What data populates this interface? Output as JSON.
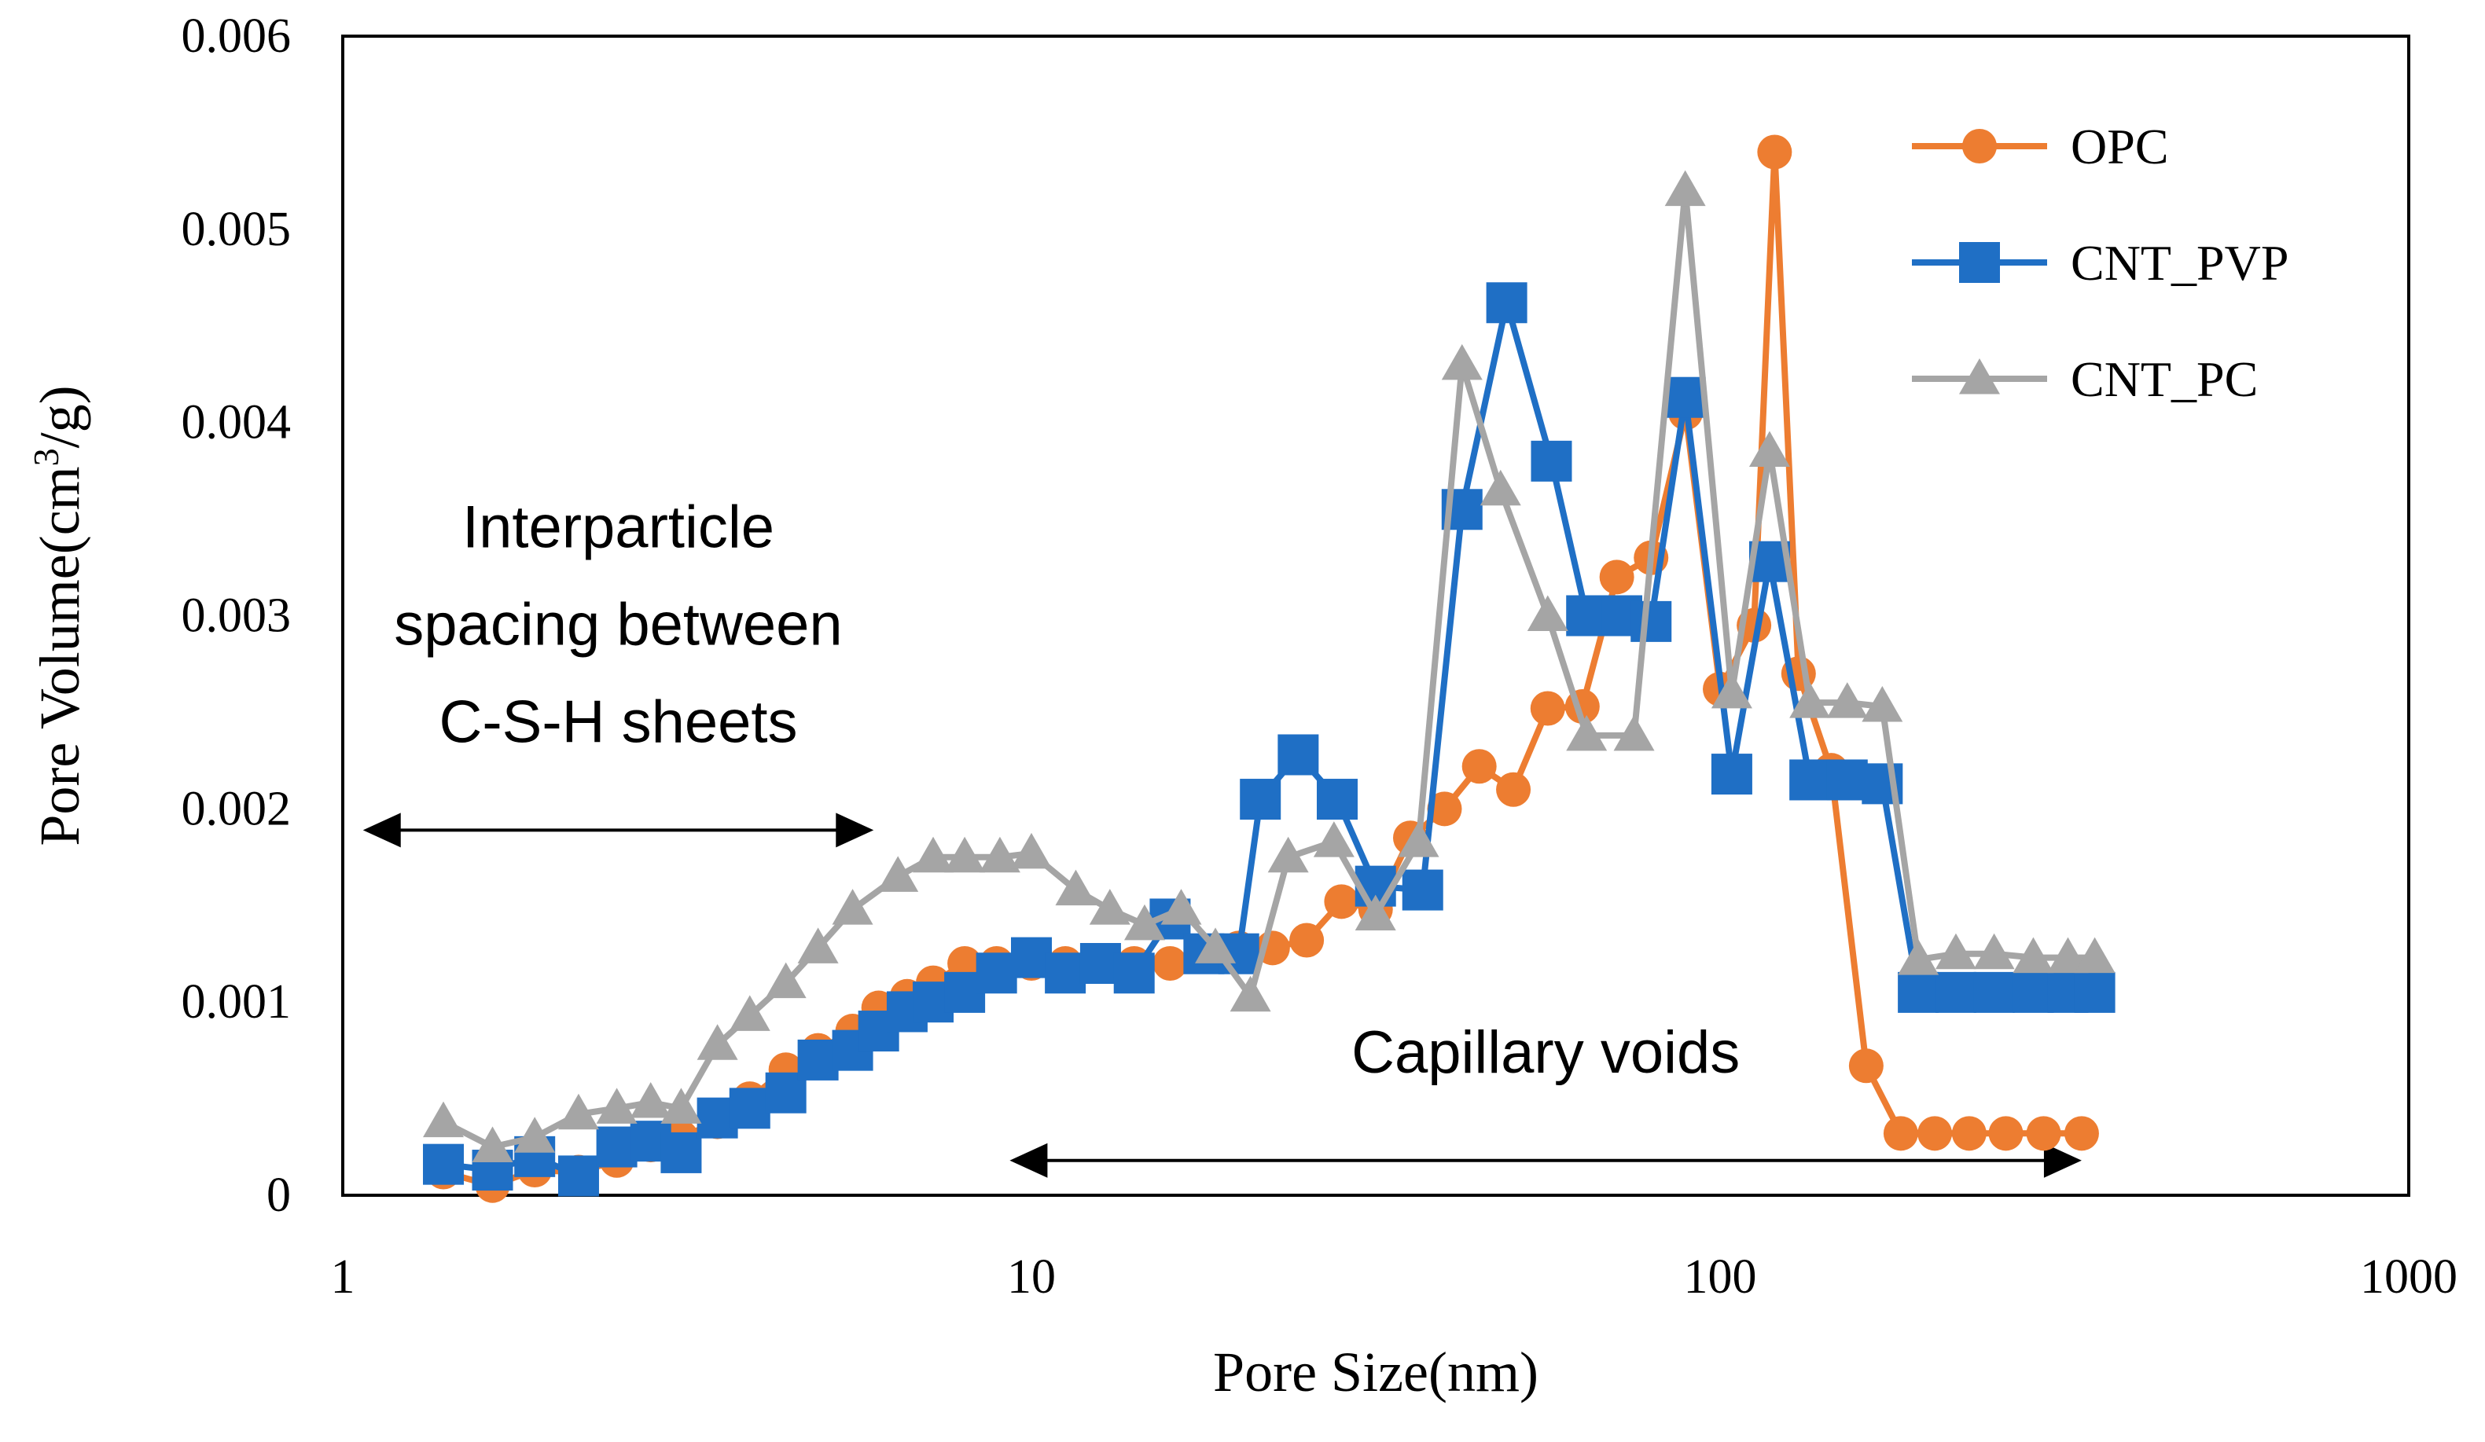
{
  "chart_data": {
    "type": "line",
    "xlabel": "Pore Size(nm)",
    "ylabel_main": "Pore Volume(cm",
    "ylabel_sup": "3",
    "ylabel_tail": "/g)",
    "x_scale": "log",
    "xlim": [
      1,
      1000
    ],
    "ylim": [
      0,
      0.006
    ],
    "x_ticks": [
      1,
      10,
      100,
      1000
    ],
    "x_tick_labels": [
      "1",
      "10",
      "100",
      "1000"
    ],
    "y_ticks": [
      0,
      0.001,
      0.002,
      0.003,
      0.004,
      0.005,
      0.006
    ],
    "y_tick_labels": [
      "0",
      "0.001",
      "0.002",
      "0.003",
      "0.004",
      "0.005",
      "0.006"
    ],
    "grid": false,
    "legend_position": "top-right",
    "series": [
      {
        "name": "OPC",
        "color": "#ED7D31",
        "marker": "circle",
        "points": [
          [
            1.4,
            0.00012
          ],
          [
            1.65,
            5e-05
          ],
          [
            1.9,
            0.00013
          ],
          [
            2.2,
            0.00012
          ],
          [
            2.5,
            0.00018
          ],
          [
            2.8,
            0.00026
          ],
          [
            3.1,
            0.0003
          ],
          [
            3.5,
            0.00038
          ],
          [
            3.9,
            0.0005
          ],
          [
            4.4,
            0.00065
          ],
          [
            4.9,
            0.00075
          ],
          [
            5.5,
            0.00085
          ],
          [
            6.0,
            0.00097
          ],
          [
            6.6,
            0.00103
          ],
          [
            7.2,
            0.0011
          ],
          [
            8.0,
            0.0012
          ],
          [
            8.9,
            0.0012
          ],
          [
            10.0,
            0.0012
          ],
          [
            11.2,
            0.0012
          ],
          [
            12.6,
            0.0012
          ],
          [
            14.1,
            0.0012
          ],
          [
            15.9,
            0.0012
          ],
          [
            17.8,
            0.00125
          ],
          [
            20.0,
            0.00128
          ],
          [
            22.4,
            0.00128
          ],
          [
            25.1,
            0.00132
          ],
          [
            28.2,
            0.00152
          ],
          [
            31.6,
            0.00148
          ],
          [
            35.5,
            0.00185
          ],
          [
            39.8,
            0.002
          ],
          [
            44.7,
            0.00222
          ],
          [
            50.1,
            0.0021
          ],
          [
            56.2,
            0.00252
          ],
          [
            63.1,
            0.00253
          ],
          [
            70.8,
            0.0032
          ],
          [
            79.4,
            0.0033
          ],
          [
            89.1,
            0.00405
          ],
          [
            100,
            0.00262
          ],
          [
            112,
            0.00295
          ],
          [
            120,
            0.0054
          ],
          [
            130,
            0.0027
          ],
          [
            145,
            0.0022
          ],
          [
            163,
            0.00067
          ],
          [
            183,
            0.00032
          ],
          [
            205,
            0.00032
          ],
          [
            230,
            0.00032
          ],
          [
            260,
            0.00032
          ],
          [
            295,
            0.00032
          ],
          [
            335,
            0.00032
          ]
        ]
      },
      {
        "name": "CNT_PVP",
        "color": "#1F6FC5",
        "marker": "square",
        "points": [
          [
            1.4,
            0.00016
          ],
          [
            1.65,
            0.00013
          ],
          [
            1.9,
            0.0002
          ],
          [
            2.2,
            0.0001
          ],
          [
            2.5,
            0.00025
          ],
          [
            2.8,
            0.00028
          ],
          [
            3.1,
            0.00022
          ],
          [
            3.5,
            0.0004
          ],
          [
            3.9,
            0.00045
          ],
          [
            4.4,
            0.00053
          ],
          [
            4.9,
            0.0007
          ],
          [
            5.5,
            0.00075
          ],
          [
            6.0,
            0.00085
          ],
          [
            6.6,
            0.00095
          ],
          [
            7.2,
            0.001
          ],
          [
            8.0,
            0.00105
          ],
          [
            8.9,
            0.00115
          ],
          [
            10.0,
            0.00123
          ],
          [
            11.2,
            0.00115
          ],
          [
            12.6,
            0.0012
          ],
          [
            14.1,
            0.00115
          ],
          [
            15.9,
            0.00143
          ],
          [
            17.8,
            0.00125
          ],
          [
            20.0,
            0.00125
          ],
          [
            21.5,
            0.00205
          ],
          [
            24.4,
            0.00228
          ],
          [
            27.8,
            0.00205
          ],
          [
            31.6,
            0.0016
          ],
          [
            37.0,
            0.00158
          ],
          [
            42.2,
            0.00355
          ],
          [
            49.0,
            0.00462
          ],
          [
            56.9,
            0.0038
          ],
          [
            64.0,
            0.003
          ],
          [
            72.0,
            0.003
          ],
          [
            79.4,
            0.00297
          ],
          [
            89.0,
            0.00413
          ],
          [
            104,
            0.00218
          ],
          [
            118,
            0.00328
          ],
          [
            135,
            0.00215
          ],
          [
            153,
            0.00215
          ],
          [
            172,
            0.00213
          ],
          [
            194,
            0.00105
          ],
          [
            220,
            0.00105
          ],
          [
            250,
            0.00105
          ],
          [
            285,
            0.00105
          ],
          [
            320,
            0.00105
          ],
          [
            350,
            0.00105
          ]
        ]
      },
      {
        "name": "CNT_PC",
        "color": "#A5A5A5",
        "marker": "triangle",
        "points": [
          [
            1.4,
            0.00038
          ],
          [
            1.65,
            0.00025
          ],
          [
            1.9,
            0.0003
          ],
          [
            2.2,
            0.00042
          ],
          [
            2.5,
            0.00045
          ],
          [
            2.8,
            0.00048
          ],
          [
            3.1,
            0.00045
          ],
          [
            3.5,
            0.00078
          ],
          [
            3.9,
            0.00093
          ],
          [
            4.4,
            0.0011
          ],
          [
            4.9,
            0.00128
          ],
          [
            5.5,
            0.00148
          ],
          [
            6.4,
            0.00165
          ],
          [
            7.2,
            0.00175
          ],
          [
            8.0,
            0.00175
          ],
          [
            9.0,
            0.00175
          ],
          [
            10.0,
            0.00177
          ],
          [
            11.6,
            0.00158
          ],
          [
            13.0,
            0.00148
          ],
          [
            14.6,
            0.0014
          ],
          [
            16.5,
            0.00148
          ],
          [
            18.5,
            0.00128
          ],
          [
            20.8,
            0.00103
          ],
          [
            23.6,
            0.00175
          ],
          [
            27.5,
            0.00183
          ],
          [
            31.6,
            0.00145
          ],
          [
            36.5,
            0.00183
          ],
          [
            42.2,
            0.0043
          ],
          [
            48.0,
            0.00365
          ],
          [
            56.2,
            0.003
          ],
          [
            64.0,
            0.00238
          ],
          [
            75.0,
            0.00238
          ],
          [
            89.0,
            0.0052
          ],
          [
            104,
            0.0026
          ],
          [
            118,
            0.00385
          ],
          [
            135,
            0.00255
          ],
          [
            153,
            0.00255
          ],
          [
            172,
            0.00253
          ],
          [
            194,
            0.00122
          ],
          [
            220,
            0.00125
          ],
          [
            250,
            0.00125
          ],
          [
            285,
            0.00123
          ],
          [
            320,
            0.00123
          ],
          [
            350,
            0.00123
          ]
        ]
      }
    ],
    "annotations": [
      {
        "lines": [
          "Interparticle",
          "spacing between",
          "C-S-H sheets"
        ],
        "arrow_x_range": [
          1.07,
          5.9
        ],
        "arrow_y": 0.00189
      },
      {
        "lines": [
          "Capillary voids"
        ],
        "arrow_x_range": [
          9.3,
          335
        ],
        "arrow_y": 0.00018
      }
    ]
  }
}
